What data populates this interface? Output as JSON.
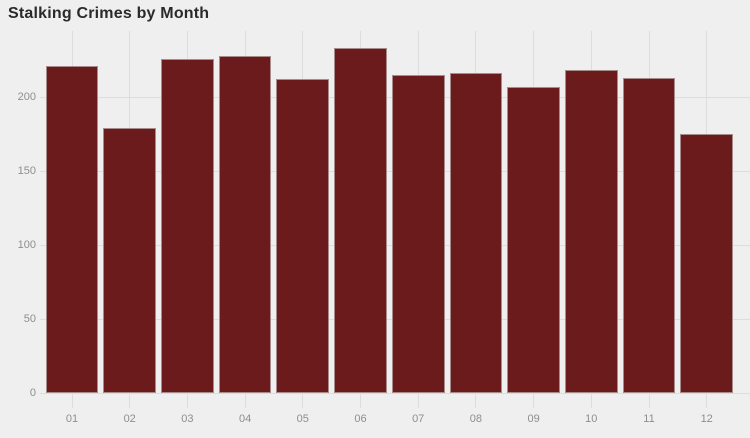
{
  "chart_data": {
    "type": "bar",
    "title": "Stalking Crimes by Month",
    "categories": [
      "01",
      "02",
      "03",
      "04",
      "05",
      "06",
      "07",
      "08",
      "09",
      "10",
      "11",
      "12"
    ],
    "values": [
      221,
      179,
      226,
      228,
      212,
      233,
      215,
      216,
      207,
      218,
      213,
      175
    ],
    "xlabel": "",
    "ylabel": "",
    "ylim": [
      0,
      245
    ],
    "yticks": [
      0,
      50,
      100,
      150,
      200
    ],
    "grid": true,
    "legend": "none",
    "colors": {
      "background": "#efefef",
      "bar_fill": "#6b1b1b",
      "bar_edge": "#a88b8b",
      "gridline": "#dddddd",
      "tick_label": "#8e8e8e",
      "title_text": "#2a2a2a"
    }
  }
}
